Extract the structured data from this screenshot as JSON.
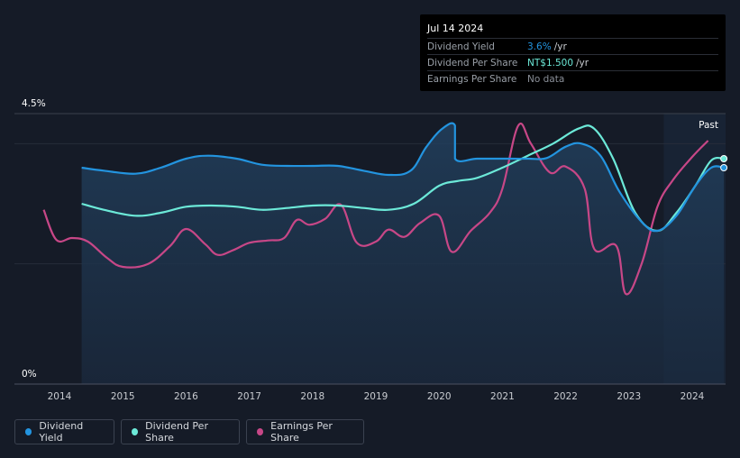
{
  "colors": {
    "background": "#151b27",
    "dividend_yield": "#2394df",
    "dividend_per_share": "#6ce9d8",
    "earnings_per_share": "#c74787"
  },
  "tooltip": {
    "date": "Jul 14 2024",
    "rows": [
      {
        "label": "Dividend Yield",
        "value": "3.6%",
        "unit": "/yr",
        "color": "#2394df"
      },
      {
        "label": "Dividend Per Share",
        "value": "NT$1.500",
        "unit": "/yr",
        "color": "#6ce9d8"
      },
      {
        "label": "Earnings Per Share",
        "value": "No data",
        "unit": "",
        "color": "#8a8f98"
      }
    ]
  },
  "legend": [
    {
      "label": "Dividend Yield",
      "color": "#2394df"
    },
    {
      "label": "Dividend Per Share",
      "color": "#6ce9d8"
    },
    {
      "label": "Earnings Per Share",
      "color": "#c74787"
    }
  ],
  "chart_data": {
    "type": "line",
    "y_top_label": "4.5%",
    "y_bottom_label": "0%",
    "ylim": [
      0,
      4.5
    ],
    "xlim": [
      2013.5,
      2024.55
    ],
    "x_ticks": [
      "2014",
      "2015",
      "2016",
      "2017",
      "2018",
      "2019",
      "2020",
      "2021",
      "2022",
      "2023",
      "2024"
    ],
    "past_label": "Past",
    "past_region_start": 2023.55,
    "series": [
      {
        "name": "Dividend Yield",
        "color": "#2394df",
        "points": [
          [
            2014.35,
            3.6
          ],
          [
            2014.7,
            3.55
          ],
          [
            2015.2,
            3.5
          ],
          [
            2015.6,
            3.6
          ],
          [
            2016.0,
            3.75
          ],
          [
            2016.35,
            3.8
          ],
          [
            2016.8,
            3.75
          ],
          [
            2017.2,
            3.65
          ],
          [
            2017.6,
            3.63
          ],
          [
            2018.0,
            3.63
          ],
          [
            2018.4,
            3.63
          ],
          [
            2018.8,
            3.55
          ],
          [
            2019.2,
            3.48
          ],
          [
            2019.55,
            3.55
          ],
          [
            2019.8,
            3.95
          ],
          [
            2020.05,
            4.25
          ],
          [
            2020.25,
            4.3
          ],
          [
            2020.25,
            3.75
          ],
          [
            2020.6,
            3.75
          ],
          [
            2021.0,
            3.75
          ],
          [
            2021.4,
            3.75
          ],
          [
            2021.7,
            3.76
          ],
          [
            2022.0,
            3.95
          ],
          [
            2022.25,
            4.0
          ],
          [
            2022.55,
            3.8
          ],
          [
            2022.85,
            3.2
          ],
          [
            2023.2,
            2.7
          ],
          [
            2023.45,
            2.55
          ],
          [
            2023.75,
            2.8
          ],
          [
            2024.05,
            3.3
          ],
          [
            2024.3,
            3.6
          ],
          [
            2024.5,
            3.6
          ]
        ]
      },
      {
        "name": "Dividend Per Share",
        "color": "#6ce9d8",
        "points": [
          [
            2014.35,
            3.0
          ],
          [
            2014.7,
            2.9
          ],
          [
            2015.2,
            2.8
          ],
          [
            2015.6,
            2.85
          ],
          [
            2016.0,
            2.95
          ],
          [
            2016.4,
            2.97
          ],
          [
            2016.8,
            2.95
          ],
          [
            2017.2,
            2.9
          ],
          [
            2017.6,
            2.93
          ],
          [
            2018.0,
            2.97
          ],
          [
            2018.4,
            2.97
          ],
          [
            2018.8,
            2.93
          ],
          [
            2019.2,
            2.9
          ],
          [
            2019.6,
            3.0
          ],
          [
            2020.0,
            3.3
          ],
          [
            2020.3,
            3.38
          ],
          [
            2020.6,
            3.43
          ],
          [
            2021.0,
            3.6
          ],
          [
            2021.4,
            3.8
          ],
          [
            2021.8,
            4.0
          ],
          [
            2022.2,
            4.25
          ],
          [
            2022.45,
            4.25
          ],
          [
            2022.75,
            3.75
          ],
          [
            2023.1,
            2.85
          ],
          [
            2023.45,
            2.55
          ],
          [
            2023.75,
            2.85
          ],
          [
            2024.05,
            3.3
          ],
          [
            2024.3,
            3.72
          ],
          [
            2024.5,
            3.75
          ]
        ]
      },
      {
        "name": "Earnings Per Share",
        "color": "#c74787",
        "points": [
          [
            2013.75,
            2.9
          ],
          [
            2013.95,
            2.4
          ],
          [
            2014.2,
            2.43
          ],
          [
            2014.45,
            2.37
          ],
          [
            2014.75,
            2.1
          ],
          [
            2015.0,
            1.95
          ],
          [
            2015.4,
            2.0
          ],
          [
            2015.75,
            2.3
          ],
          [
            2016.0,
            2.58
          ],
          [
            2016.3,
            2.33
          ],
          [
            2016.5,
            2.15
          ],
          [
            2016.75,
            2.23
          ],
          [
            2017.0,
            2.35
          ],
          [
            2017.3,
            2.39
          ],
          [
            2017.55,
            2.43
          ],
          [
            2017.75,
            2.73
          ],
          [
            2017.95,
            2.65
          ],
          [
            2018.2,
            2.75
          ],
          [
            2018.45,
            2.98
          ],
          [
            2018.7,
            2.35
          ],
          [
            2019.0,
            2.37
          ],
          [
            2019.2,
            2.57
          ],
          [
            2019.45,
            2.45
          ],
          [
            2019.7,
            2.68
          ],
          [
            2020.0,
            2.8
          ],
          [
            2020.2,
            2.2
          ],
          [
            2020.5,
            2.55
          ],
          [
            2020.8,
            2.85
          ],
          [
            2021.0,
            3.25
          ],
          [
            2021.25,
            4.3
          ],
          [
            2021.45,
            4.0
          ],
          [
            2021.75,
            3.52
          ],
          [
            2022.0,
            3.62
          ],
          [
            2022.3,
            3.25
          ],
          [
            2022.45,
            2.25
          ],
          [
            2022.8,
            2.3
          ],
          [
            2022.95,
            1.5
          ],
          [
            2023.2,
            2.0
          ],
          [
            2023.45,
            2.95
          ],
          [
            2023.7,
            3.4
          ],
          [
            2024.0,
            3.78
          ],
          [
            2024.25,
            4.05
          ]
        ]
      }
    ]
  }
}
